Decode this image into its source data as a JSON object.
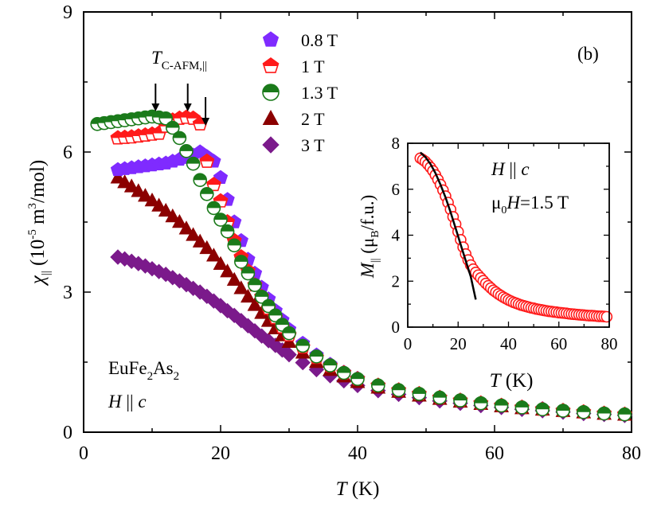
{
  "chart_data": {
    "type": "scatter",
    "panel_label": "(b)",
    "xlabel": "T (K)",
    "ylabel": "χ|| (10-5 m3/mol)",
    "xlim": [
      0,
      80
    ],
    "ylim": [
      0,
      9
    ],
    "x_ticks": [
      "0",
      "20",
      "40",
      "60",
      "80"
    ],
    "y_ticks": [
      "0",
      "3",
      "6",
      "9"
    ],
    "grid": false,
    "legend_position": "top-center",
    "annotations": {
      "transition_label_main": "T",
      "transition_label_sub": "C-AFM,||",
      "transition_arrows_x": [
        10.5,
        15.2,
        17.8
      ],
      "sample_formula": "EuFe2As2",
      "field_direction": "H || c"
    },
    "series": [
      {
        "name": "0.8 T",
        "marker": "pentagon-filled",
        "color": "#7f2bff",
        "points": [
          [
            5,
            5.62
          ],
          [
            6,
            5.64
          ],
          [
            7,
            5.66
          ],
          [
            8,
            5.68
          ],
          [
            9,
            5.7
          ],
          [
            10,
            5.72
          ],
          [
            11,
            5.74
          ],
          [
            12,
            5.76
          ],
          [
            13,
            5.8
          ],
          [
            14,
            5.84
          ],
          [
            15,
            5.88
          ],
          [
            16,
            5.93
          ],
          [
            17,
            6.0
          ],
          [
            18,
            5.9
          ],
          [
            19,
            5.8
          ],
          [
            20,
            5.45
          ],
          [
            21,
            4.98
          ],
          [
            22,
            4.5
          ],
          [
            23,
            4.1
          ],
          [
            24,
            3.7
          ],
          [
            25,
            3.4
          ],
          [
            26,
            3.1
          ],
          [
            27,
            2.85
          ],
          [
            28,
            2.6
          ],
          [
            29,
            2.4
          ],
          [
            30,
            2.2
          ],
          [
            32,
            1.9
          ],
          [
            34,
            1.65
          ],
          [
            36,
            1.45
          ],
          [
            38,
            1.28
          ],
          [
            40,
            1.15
          ],
          [
            43,
            1.0
          ],
          [
            46,
            0.9
          ],
          [
            49,
            0.82
          ],
          [
            52,
            0.74
          ],
          [
            55,
            0.68
          ],
          [
            58,
            0.62
          ],
          [
            61,
            0.57
          ],
          [
            64,
            0.53
          ],
          [
            67,
            0.5
          ],
          [
            70,
            0.46
          ],
          [
            73,
            0.43
          ],
          [
            76,
            0.4
          ],
          [
            79,
            0.38
          ]
        ]
      },
      {
        "name": "1 T",
        "marker": "pentagon-half",
        "color": "#ff1a1a",
        "points": [
          [
            5,
            6.3
          ],
          [
            6,
            6.31
          ],
          [
            7,
            6.32
          ],
          [
            8,
            6.34
          ],
          [
            9,
            6.36
          ],
          [
            10,
            6.38
          ],
          [
            11,
            6.4
          ],
          [
            12,
            6.55
          ],
          [
            13,
            6.68
          ],
          [
            14,
            6.72
          ],
          [
            15,
            6.74
          ],
          [
            16,
            6.72
          ],
          [
            17,
            6.6
          ],
          [
            18,
            5.8
          ],
          [
            19,
            5.3
          ],
          [
            20,
            4.95
          ],
          [
            21,
            4.5
          ],
          [
            22,
            4.1
          ],
          [
            23,
            3.75
          ],
          [
            24,
            3.45
          ],
          [
            25,
            3.15
          ],
          [
            26,
            2.9
          ],
          [
            27,
            2.65
          ],
          [
            28,
            2.45
          ],
          [
            29,
            2.25
          ],
          [
            30,
            2.08
          ],
          [
            32,
            1.82
          ],
          [
            34,
            1.6
          ],
          [
            36,
            1.42
          ],
          [
            38,
            1.27
          ],
          [
            40,
            1.14
          ],
          [
            43,
            1.0
          ],
          [
            46,
            0.9
          ],
          [
            49,
            0.82
          ],
          [
            52,
            0.74
          ],
          [
            55,
            0.68
          ],
          [
            58,
            0.62
          ],
          [
            61,
            0.57
          ],
          [
            64,
            0.53
          ],
          [
            67,
            0.49
          ],
          [
            70,
            0.46
          ],
          [
            73,
            0.43
          ],
          [
            76,
            0.4
          ],
          [
            79,
            0.38
          ]
        ]
      },
      {
        "name": "1.3 T",
        "marker": "circle-half",
        "color": "#1a7a1a",
        "points": [
          [
            2,
            6.6
          ],
          [
            3,
            6.62
          ],
          [
            4,
            6.64
          ],
          [
            5,
            6.66
          ],
          [
            6,
            6.68
          ],
          [
            7,
            6.7
          ],
          [
            8,
            6.72
          ],
          [
            9,
            6.74
          ],
          [
            10,
            6.76
          ],
          [
            11,
            6.74
          ],
          [
            12,
            6.72
          ],
          [
            13,
            6.52
          ],
          [
            14,
            6.3
          ],
          [
            15,
            6.02
          ],
          [
            16,
            5.75
          ],
          [
            17,
            5.4
          ],
          [
            18,
            5.1
          ],
          [
            19,
            4.8
          ],
          [
            20,
            4.55
          ],
          [
            21,
            4.3
          ],
          [
            22,
            4.0
          ],
          [
            23,
            3.65
          ],
          [
            24,
            3.4
          ],
          [
            25,
            3.15
          ],
          [
            26,
            2.9
          ],
          [
            27,
            2.7
          ],
          [
            28,
            2.5
          ],
          [
            29,
            2.3
          ],
          [
            30,
            2.12
          ],
          [
            32,
            1.85
          ],
          [
            34,
            1.62
          ],
          [
            36,
            1.43
          ],
          [
            38,
            1.27
          ],
          [
            40,
            1.14
          ],
          [
            43,
            1.0
          ],
          [
            46,
            0.9
          ],
          [
            49,
            0.82
          ],
          [
            52,
            0.74
          ],
          [
            55,
            0.68
          ],
          [
            58,
            0.62
          ],
          [
            61,
            0.57
          ],
          [
            64,
            0.53
          ],
          [
            67,
            0.49
          ],
          [
            70,
            0.46
          ],
          [
            73,
            0.43
          ],
          [
            76,
            0.4
          ],
          [
            79,
            0.38
          ]
        ]
      },
      {
        "name": "2 T",
        "marker": "triangle-filled",
        "color": "#8b0000",
        "points": [
          [
            5,
            5.45
          ],
          [
            6,
            5.35
          ],
          [
            7,
            5.26
          ],
          [
            8,
            5.16
          ],
          [
            9,
            5.06
          ],
          [
            10,
            4.96
          ],
          [
            11,
            4.85
          ],
          [
            12,
            4.74
          ],
          [
            13,
            4.62
          ],
          [
            14,
            4.5
          ],
          [
            15,
            4.36
          ],
          [
            16,
            4.22
          ],
          [
            17,
            4.08
          ],
          [
            18,
            3.94
          ],
          [
            19,
            3.78
          ],
          [
            20,
            3.6
          ],
          [
            21,
            3.44
          ],
          [
            22,
            3.26
          ],
          [
            23,
            3.08
          ],
          [
            24,
            2.9
          ],
          [
            25,
            2.72
          ],
          [
            26,
            2.55
          ],
          [
            27,
            2.38
          ],
          [
            28,
            2.22
          ],
          [
            29,
            2.07
          ],
          [
            30,
            1.93
          ],
          [
            32,
            1.7
          ],
          [
            34,
            1.5
          ],
          [
            36,
            1.33
          ],
          [
            38,
            1.19
          ],
          [
            40,
            1.07
          ],
          [
            43,
            0.95
          ],
          [
            46,
            0.86
          ],
          [
            49,
            0.78
          ],
          [
            52,
            0.71
          ],
          [
            55,
            0.65
          ],
          [
            58,
            0.6
          ],
          [
            61,
            0.55
          ],
          [
            64,
            0.51
          ],
          [
            67,
            0.48
          ],
          [
            70,
            0.45
          ],
          [
            73,
            0.42
          ],
          [
            76,
            0.39
          ],
          [
            79,
            0.37
          ]
        ]
      },
      {
        "name": "3 T",
        "marker": "diamond-filled",
        "color": "#7b1a8b",
        "points": [
          [
            5,
            3.75
          ],
          [
            6,
            3.71
          ],
          [
            7,
            3.66
          ],
          [
            8,
            3.61
          ],
          [
            9,
            3.56
          ],
          [
            10,
            3.5
          ],
          [
            11,
            3.44
          ],
          [
            12,
            3.38
          ],
          [
            13,
            3.31
          ],
          [
            14,
            3.24
          ],
          [
            15,
            3.16
          ],
          [
            16,
            3.08
          ],
          [
            17,
            3.0
          ],
          [
            18,
            2.91
          ],
          [
            19,
            2.81
          ],
          [
            20,
            2.71
          ],
          [
            21,
            2.6
          ],
          [
            22,
            2.5
          ],
          [
            23,
            2.39
          ],
          [
            24,
            2.28
          ],
          [
            25,
            2.17
          ],
          [
            26,
            2.06
          ],
          [
            27,
            1.96
          ],
          [
            28,
            1.86
          ],
          [
            29,
            1.76
          ],
          [
            30,
            1.66
          ],
          [
            32,
            1.49
          ],
          [
            34,
            1.34
          ],
          [
            36,
            1.21
          ],
          [
            38,
            1.1
          ],
          [
            40,
            1.0
          ],
          [
            43,
            0.89
          ],
          [
            46,
            0.81
          ],
          [
            49,
            0.74
          ],
          [
            52,
            0.67
          ],
          [
            55,
            0.62
          ],
          [
            58,
            0.57
          ],
          [
            61,
            0.53
          ],
          [
            64,
            0.49
          ],
          [
            67,
            0.46
          ],
          [
            70,
            0.43
          ],
          [
            73,
            0.4
          ],
          [
            76,
            0.38
          ],
          [
            79,
            0.36
          ]
        ]
      }
    ],
    "inset": {
      "type": "scatter",
      "xlabel": "T (K)",
      "ylabel": "M|| (μB/f.u.)",
      "xlim": [
        0,
        80
      ],
      "ylim": [
        0,
        8
      ],
      "x_ticks": [
        "0",
        "20",
        "40",
        "60",
        "80"
      ],
      "y_ticks": [
        "0",
        "2",
        "4",
        "6",
        "8"
      ],
      "annotation_line1": "H || c",
      "annotation_line2": "μ0H=1.5 T",
      "marker_color": "#ff1a1a",
      "fit_color": "#000000",
      "points": [
        [
          5,
          7.35
        ],
        [
          6,
          7.28
        ],
        [
          7,
          7.2
        ],
        [
          8,
          7.08
        ],
        [
          9,
          6.95
        ],
        [
          10,
          6.8
        ],
        [
          11,
          6.62
        ],
        [
          12,
          6.42
        ],
        [
          13,
          6.2
        ],
        [
          14,
          5.96
        ],
        [
          15,
          5.7
        ],
        [
          16,
          5.42
        ],
        [
          17,
          5.12
        ],
        [
          18,
          4.8
        ],
        [
          19,
          4.48
        ],
        [
          20,
          4.15
        ],
        [
          21,
          3.8
        ],
        [
          22,
          3.48
        ],
        [
          23,
          3.18
        ],
        [
          24,
          2.92
        ],
        [
          25,
          2.7
        ],
        [
          26,
          2.52
        ],
        [
          27,
          2.38
        ],
        [
          28,
          2.26
        ],
        [
          29,
          2.14
        ],
        [
          30,
          2.02
        ],
        [
          31,
          1.9
        ],
        [
          32,
          1.8
        ],
        [
          33,
          1.7
        ],
        [
          34,
          1.6
        ],
        [
          35,
          1.52
        ],
        [
          36,
          1.44
        ],
        [
          37,
          1.37
        ],
        [
          38,
          1.3
        ],
        [
          39,
          1.24
        ],
        [
          40,
          1.18
        ],
        [
          41,
          1.13
        ],
        [
          42,
          1.08
        ],
        [
          43,
          1.04
        ],
        [
          44,
          1.0
        ],
        [
          45,
          0.96
        ],
        [
          46,
          0.93
        ],
        [
          47,
          0.9
        ],
        [
          48,
          0.87
        ],
        [
          49,
          0.84
        ],
        [
          50,
          0.82
        ],
        [
          51,
          0.79
        ],
        [
          52,
          0.77
        ],
        [
          53,
          0.75
        ],
        [
          54,
          0.73
        ],
        [
          55,
          0.71
        ],
        [
          56,
          0.69
        ],
        [
          57,
          0.68
        ],
        [
          58,
          0.66
        ],
        [
          59,
          0.65
        ],
        [
          60,
          0.63
        ],
        [
          61,
          0.62
        ],
        [
          62,
          0.61
        ],
        [
          63,
          0.6
        ],
        [
          64,
          0.58
        ],
        [
          65,
          0.57
        ],
        [
          66,
          0.56
        ],
        [
          67,
          0.55
        ],
        [
          68,
          0.54
        ],
        [
          69,
          0.53
        ],
        [
          70,
          0.52
        ],
        [
          71,
          0.51
        ],
        [
          72,
          0.5
        ],
        [
          73,
          0.5
        ],
        [
          74,
          0.49
        ],
        [
          75,
          0.48
        ],
        [
          76,
          0.47
        ],
        [
          77,
          0.47
        ],
        [
          78,
          0.46
        ],
        [
          79,
          0.45
        ]
      ],
      "fit_curve": [
        [
          5,
          7.6
        ],
        [
          7,
          7.4
        ],
        [
          9,
          7.1
        ],
        [
          11,
          6.7
        ],
        [
          13,
          6.2
        ],
        [
          15,
          5.65
        ],
        [
          17,
          5.0
        ],
        [
          19,
          4.3
        ],
        [
          21,
          3.6
        ],
        [
          23,
          2.9
        ],
        [
          25,
          2.2
        ],
        [
          27,
          1.2
        ]
      ]
    }
  }
}
